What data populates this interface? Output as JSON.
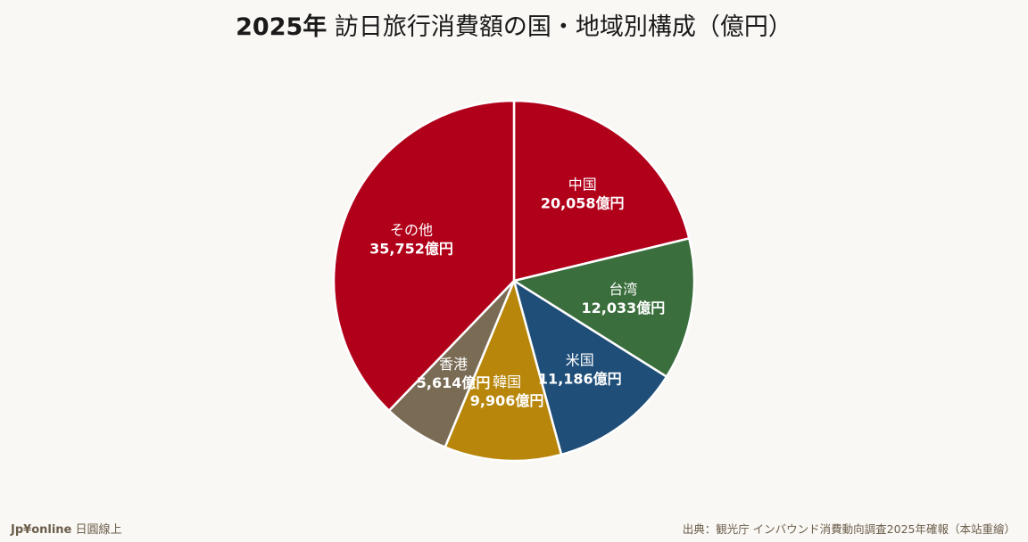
{
  "page": {
    "title_bold": "2025年",
    "title_rest": " 訪日旅行消費額の国・地域別構成（億円）",
    "brand_bold": "Jp¥online",
    "brand_rest": " 日圓線上",
    "source": "出典：観光庁 インバウンド消費動向調査2025年確報（本站重繪）"
  },
  "chart_data": {
    "type": "pie",
    "title": "2025年 訪日旅行消費額の国・地域別構成（億円）",
    "unit": "億円",
    "start": "12 o'clock, clockwise",
    "categories": [
      "中国",
      "台湾",
      "米国",
      "韓国",
      "香港",
      "その他"
    ],
    "values": [
      20058,
      12033,
      11186,
      9906,
      5614,
      35752
    ],
    "value_labels": [
      "20,058億円",
      "12,033億円",
      "11,186億円",
      "9,906億円",
      "5,614億円",
      "35,752億円"
    ],
    "colors": [
      "#b1001a",
      "#3a6e3c",
      "#1f4e79",
      "#b8860b",
      "#7a6b55",
      "#b1001a"
    ]
  }
}
